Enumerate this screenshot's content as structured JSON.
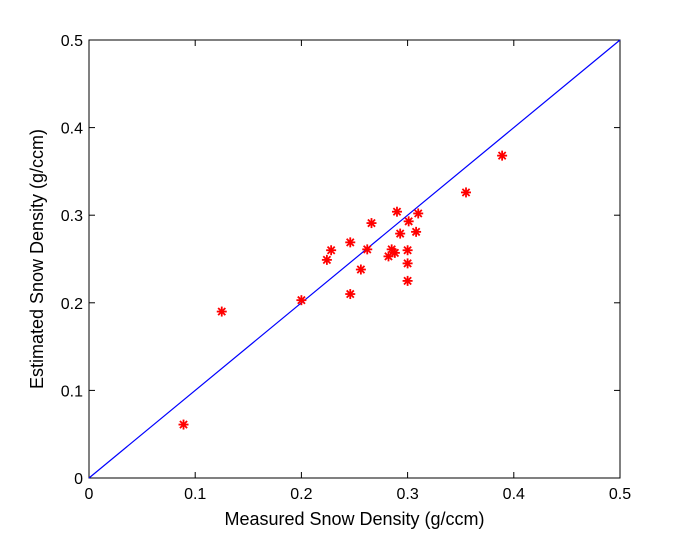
{
  "chart_data": {
    "type": "scatter",
    "title": "",
    "xlabel": "Measured Snow Density (g/ccm)",
    "ylabel": "Estimated Snow Density (g/ccm)",
    "xlim": [
      0,
      0.5
    ],
    "ylim": [
      0,
      0.5
    ],
    "x_ticks": [
      "0",
      "0.1",
      "0.2",
      "0.3",
      "0.4",
      "0.5"
    ],
    "y_ticks": [
      "0",
      "0.1",
      "0.2",
      "0.3",
      "0.4",
      "0.5"
    ],
    "grid": false,
    "legend": "none",
    "reference_line": {
      "from": [
        0,
        0
      ],
      "to": [
        0.5,
        0.5
      ],
      "color": "#0000ff"
    },
    "marker": {
      "symbol": "asterisk",
      "color": "#ff0000"
    },
    "points": [
      {
        "x": 0.089,
        "y": 0.061
      },
      {
        "x": 0.125,
        "y": 0.19
      },
      {
        "x": 0.2,
        "y": 0.203
      },
      {
        "x": 0.224,
        "y": 0.249
      },
      {
        "x": 0.228,
        "y": 0.26
      },
      {
        "x": 0.246,
        "y": 0.21
      },
      {
        "x": 0.246,
        "y": 0.269
      },
      {
        "x": 0.256,
        "y": 0.238
      },
      {
        "x": 0.262,
        "y": 0.261
      },
      {
        "x": 0.266,
        "y": 0.291
      },
      {
        "x": 0.282,
        "y": 0.253
      },
      {
        "x": 0.285,
        "y": 0.261
      },
      {
        "x": 0.288,
        "y": 0.257
      },
      {
        "x": 0.29,
        "y": 0.304
      },
      {
        "x": 0.293,
        "y": 0.279
      },
      {
        "x": 0.3,
        "y": 0.225
      },
      {
        "x": 0.3,
        "y": 0.245
      },
      {
        "x": 0.3,
        "y": 0.26
      },
      {
        "x": 0.301,
        "y": 0.293
      },
      {
        "x": 0.308,
        "y": 0.281
      },
      {
        "x": 0.31,
        "y": 0.302
      },
      {
        "x": 0.355,
        "y": 0.326
      },
      {
        "x": 0.389,
        "y": 0.368
      }
    ]
  }
}
